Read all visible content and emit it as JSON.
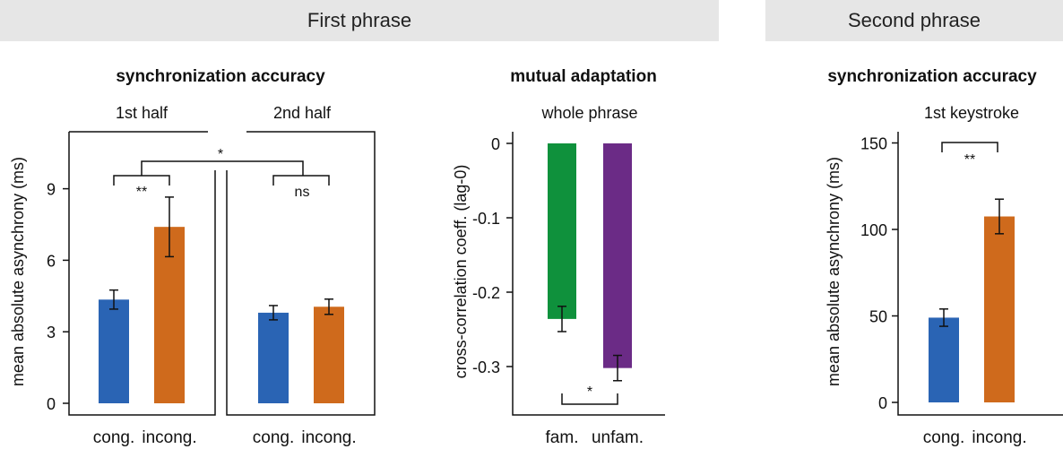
{
  "banners": {
    "first": "First phrase",
    "second": "Second phrase"
  },
  "colors": {
    "blue": "#2a64b4",
    "orange": "#cf6a1c",
    "green": "#0f913c",
    "purple": "#6b2b86"
  },
  "chart_data": [
    {
      "type": "bar",
      "title": "synchronization accuracy",
      "ylabel": "mean absolute asynchrony (ms)",
      "ylim": [
        0,
        11
      ],
      "yticks": [
        "0",
        "3",
        "6",
        "9"
      ],
      "panels": [
        {
          "subtitle": "1st half",
          "categories": [
            "cong.",
            "incong."
          ],
          "values": [
            4.35,
            7.4
          ],
          "errors": [
            0.4,
            1.25
          ],
          "colors": [
            "#2a64b4",
            "#cf6a1c"
          ],
          "significance": "**"
        },
        {
          "subtitle": "2nd half",
          "categories": [
            "cong.",
            "incong."
          ],
          "values": [
            3.8,
            4.05
          ],
          "errors": [
            0.3,
            0.32
          ],
          "colors": [
            "#2a64b4",
            "#cf6a1c"
          ],
          "significance": "ns"
        }
      ],
      "between_halves_significance": "*"
    },
    {
      "type": "bar",
      "title": "mutual adaptation",
      "subtitle": "whole phrase",
      "ylabel": "cross-correlation coeff. (lag-0)",
      "ylim": [
        -0.365,
        0
      ],
      "yticks": [
        "0",
        "-0.1",
        "-0.2",
        "-0.3"
      ],
      "categories": [
        "fam.",
        "unfam."
      ],
      "values": [
        -0.236,
        -0.302
      ],
      "errors": [
        0.017,
        0.017
      ],
      "colors": [
        "#0f913c",
        "#6b2b86"
      ],
      "significance": "*"
    },
    {
      "type": "bar",
      "title": "synchronization accuracy",
      "subtitle": "1st keystroke",
      "ylabel": "mean absolute asynchrony (ms)",
      "ylim": [
        0,
        162
      ],
      "yticks": [
        "0",
        "50",
        "100",
        "150"
      ],
      "categories": [
        "cong.",
        "incong."
      ],
      "values": [
        49,
        107.5
      ],
      "errors": [
        5,
        10
      ],
      "colors": [
        "#2a64b4",
        "#cf6a1c"
      ],
      "significance": "**"
    }
  ]
}
